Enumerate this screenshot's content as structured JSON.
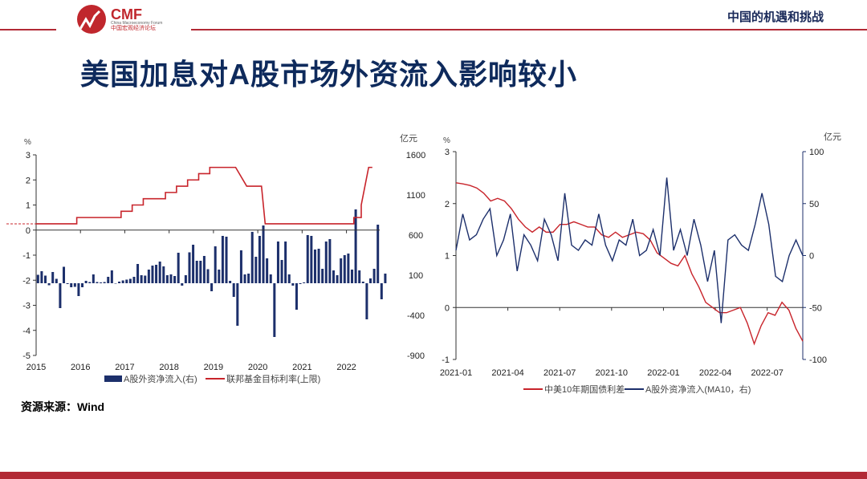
{
  "header": {
    "logo_text": "CMF",
    "logo_subtitle": "China Macroeconomy Forum",
    "logo_cn": "中国宏观经济论坛",
    "right_title": "中国的机遇和挑战"
  },
  "title": "美国加息对A股市场外资流入影响较小",
  "source": "资源来源：Wind",
  "colors": {
    "red": "#c8242b",
    "navy": "#1c2f6b",
    "brand": "#b22a35"
  },
  "chart_data": [
    {
      "type": "bar+line",
      "left_unit": "%",
      "right_unit": "亿元",
      "left_ylim": [
        -5,
        3
      ],
      "left_ticks": [
        "3",
        "2",
        "1",
        "0",
        "-1",
        "-2",
        "-3",
        "-4",
        "-5"
      ],
      "right_ylim": [
        -900,
        1600
      ],
      "right_ticks": [
        "1600",
        "1100",
        "600",
        "100",
        "-400",
        "-900"
      ],
      "x_ticks": [
        "2015",
        "2016",
        "2017",
        "2018",
        "2019",
        "2020",
        "2021",
        "2022"
      ],
      "legend": [
        "A股外资净流入(右)",
        "联邦基金目标利率(上限)"
      ],
      "bars_start": "2015-01",
      "bars": [
        105,
        150,
        95,
        -25,
        140,
        55,
        -310,
        205,
        -10,
        -50,
        -45,
        -160,
        -50,
        30,
        15,
        110,
        15,
        10,
        15,
        80,
        160,
        -5,
        20,
        35,
        45,
        55,
        80,
        240,
        100,
        95,
        170,
        220,
        230,
        270,
        210,
        100,
        110,
        90,
        380,
        -30,
        100,
        385,
        480,
        280,
        280,
        340,
        175,
        -100,
        460,
        170,
        590,
        580,
        30,
        -170,
        -530,
        410,
        110,
        120,
        640,
        330,
        590,
        720,
        310,
        110,
        -670,
        520,
        290,
        520,
        110,
        -30,
        -330,
        -10,
        10,
        600,
        590,
        420,
        430,
        180,
        520,
        550,
        160,
        100,
        310,
        350,
        370,
        170,
        920,
        160,
        20,
        -450,
        60,
        180,
        730,
        -200,
        120
      ],
      "rate_steps": [
        [
          0,
          0.25
        ],
        [
          11,
          0.25
        ],
        [
          11,
          0.5
        ],
        [
          23,
          0.5
        ],
        [
          23,
          0.75
        ],
        [
          26,
          0.75
        ],
        [
          26,
          1.0
        ],
        [
          29,
          1.0
        ],
        [
          29,
          1.25
        ],
        [
          35,
          1.25
        ],
        [
          35,
          1.5
        ],
        [
          38,
          1.5
        ],
        [
          38,
          1.75
        ],
        [
          41,
          1.75
        ],
        [
          41,
          2.0
        ],
        [
          44,
          2.0
        ],
        [
          44,
          2.25
        ],
        [
          47,
          2.25
        ],
        [
          47,
          2.5
        ],
        [
          54,
          2.5
        ],
        [
          57,
          1.75
        ],
        [
          61,
          1.75
        ],
        [
          62,
          0.25
        ],
        [
          86,
          0.25
        ],
        [
          86,
          0.5
        ],
        [
          88,
          0.5
        ],
        [
          88,
          1.0
        ],
        [
          89,
          1.75
        ],
        [
          90,
          2.5
        ],
        [
          91,
          2.5
        ]
      ]
    },
    {
      "type": "line",
      "left_unit": "%",
      "right_unit": "亿元",
      "left_ylim": [
        -1,
        3
      ],
      "left_ticks": [
        "3",
        "2",
        "1",
        "0",
        "-1"
      ],
      "right_ylim": [
        -100,
        100
      ],
      "right_ticks": [
        "100",
        "50",
        "0",
        "-50",
        "-100"
      ],
      "x_ticks": [
        "2021-01",
        "2021-04",
        "2021-07",
        "2021-10",
        "2022-01",
        "2022-04",
        "2022-07"
      ],
      "legend": [
        "中美10年期国债利差",
        "A股外资净流入(MA10，右)"
      ],
      "series": [
        {
          "name": "中美10年期国债利差",
          "values": [
            2.4,
            2.38,
            2.35,
            2.3,
            2.2,
            2.05,
            2.1,
            2.05,
            1.9,
            1.7,
            1.55,
            1.45,
            1.55,
            1.45,
            1.45,
            1.6,
            1.6,
            1.65,
            1.6,
            1.55,
            1.55,
            1.4,
            1.35,
            1.45,
            1.35,
            1.4,
            1.45,
            1.42,
            1.3,
            1.05,
            0.95,
            0.85,
            0.8,
            1.0,
            0.65,
            0.4,
            0.1,
            0.0,
            -0.1,
            -0.1,
            -0.05,
            0.0,
            -0.3,
            -0.7,
            -0.35,
            -0.1,
            -0.15,
            0.1,
            -0.05,
            -0.4,
            -0.65
          ]
        },
        {
          "name": "A股外资净流入(MA10，右)",
          "values": [
            5,
            40,
            15,
            20,
            35,
            45,
            0,
            15,
            40,
            -15,
            20,
            10,
            -5,
            35,
            20,
            -5,
            60,
            10,
            5,
            15,
            10,
            40,
            10,
            -5,
            15,
            10,
            35,
            0,
            5,
            25,
            0,
            75,
            5,
            25,
            0,
            35,
            10,
            -25,
            5,
            -65,
            15,
            20,
            10,
            5,
            30,
            60,
            30,
            -20,
            -25,
            0,
            15,
            0
          ]
        }
      ]
    }
  ]
}
